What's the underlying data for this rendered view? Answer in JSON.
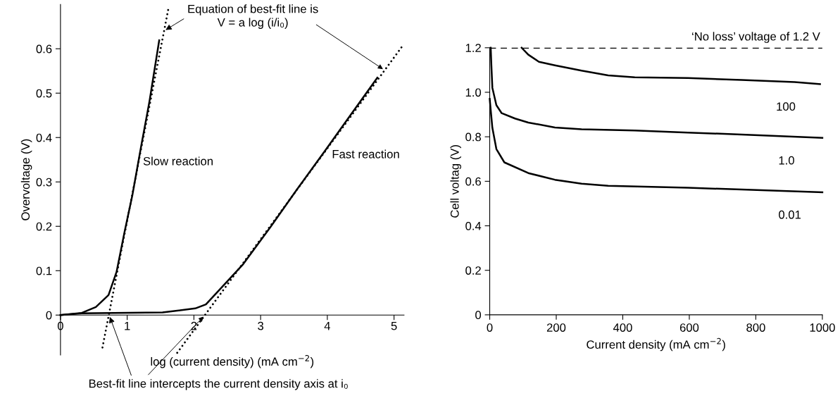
{
  "chart_data": [
    {
      "type": "line",
      "xlabel": "log (current density) (mA cm$^{−2}$)",
      "ylabel": "Overvoltage (V)",
      "xlim": [
        0,
        5.15
      ],
      "ylim": [
        -0.09,
        0.7
      ],
      "xticks": [
        0,
        1,
        2,
        3,
        4,
        5
      ],
      "yticks": [
        0,
        0.1,
        0.2,
        0.3,
        0.4,
        0.5,
        0.6
      ],
      "grid": false,
      "legend": false,
      "series": [
        {
          "color": "#000000",
          "line_style": "solid",
          "x": [
            0,
            0.32,
            0.53,
            0.72,
            0.84,
            0.96,
            1.08,
            1.21,
            1.33,
            1.48
          ],
          "values": [
            0,
            0.005,
            0.018,
            0.045,
            0.097,
            0.187,
            0.272,
            0.381,
            0.478,
            0.619
          ]
        },
        {
          "color": "#000000",
          "line_style": "solid",
          "x": [
            0,
            0.32,
            1.53,
            2.02,
            2.18,
            2.42,
            2.74,
            3.15,
            3.55,
            3.96,
            4.36,
            4.75
          ],
          "values": [
            0,
            0.004,
            0.006,
            0.015,
            0.024,
            0.063,
            0.115,
            0.199,
            0.284,
            0.369,
            0.453,
            0.535
          ]
        },
        {
          "color": "#000000",
          "line_style": "dotted",
          "x": [
            0.63,
            1.62
          ],
          "values": [
            -0.073,
            0.692
          ]
        },
        {
          "color": "#000000",
          "line_style": "dotted",
          "x": [
            1.75,
            5.13
          ],
          "values": [
            -0.085,
            0.607
          ]
        }
      ],
      "annotations": [
        "Slow reaction",
        "Fast reaction",
        {
          "text": "Equation of best-fit line is\nV = a log (i/i₀)",
          "x": 1.55,
          "y": 0.64
        },
        {
          "text": "Best-fit line intercepts the current density axis at i₀",
          "x": 0.73,
          "y": 0
        }
      ]
    },
    {
      "type": "line",
      "xlabel": "Current density (mA cm$^{−2}$)",
      "ylabel": "Cell voltag (V)",
      "xlim": [
        0,
        1000
      ],
      "ylim": [
        0,
        1.2
      ],
      "xticks": [
        0,
        200,
        400,
        600,
        800,
        1000
      ],
      "yticks": [
        0,
        0.2,
        0.4,
        0.6,
        0.8,
        {
          "value": 1,
          "label": "1.0"
        },
        1.2
      ],
      "grid": false,
      "legend": false,
      "ref_lines": [
        {
          "axis": "y",
          "value": 1.2,
          "label": "‘No loss’ voltage of 1.2 V",
          "color": "#000000",
          "line_style": "dashed"
        }
      ],
      "series": [
        {
          "name": "100",
          "color": "#000000",
          "x": [
            96,
            116,
            148,
            196,
            276,
            356,
            436,
            596,
            757,
            917,
            993
          ],
          "values": [
            1.2,
            1.169,
            1.137,
            1.121,
            1.097,
            1.076,
            1.067,
            1.064,
            1.055,
            1.046,
            1.037
          ]
        },
        {
          "name": "1.0",
          "color": "#000000",
          "x": [
            3,
            5,
            8,
            20,
            36,
            76,
            116,
            196,
            276,
            436,
            596,
            757,
            1000
          ],
          "values": [
            1.2,
            1.12,
            1.02,
            0.942,
            0.906,
            0.882,
            0.864,
            0.842,
            0.834,
            0.828,
            0.819,
            0.81,
            0.795
          ]
        },
        {
          "name": "0.01",
          "color": "#000000",
          "x": [
            0,
            2,
            8,
            20,
            44,
            116,
            196,
            276,
            356,
            596,
            757,
            1000
          ],
          "values": [
            0.97,
            0.936,
            0.84,
            0.745,
            0.685,
            0.637,
            0.607,
            0.589,
            0.58,
            0.571,
            0.563,
            0.551
          ]
        }
      ]
    }
  ]
}
